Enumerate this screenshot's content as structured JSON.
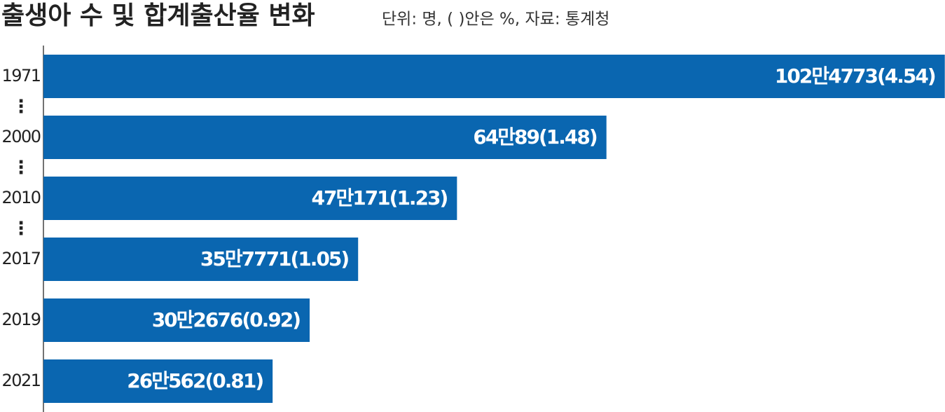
{
  "chart_data": {
    "type": "hbar",
    "title": "출생아 수 및 합계출산율 변화",
    "subtitle": "단위: 명, ( )안은 %, 자료: 통계청",
    "categories": [
      "1971",
      "2000",
      "2010",
      "2017",
      "2019",
      "2021"
    ],
    "values": [
      1024773,
      640089,
      470171,
      357771,
      302676,
      260562
    ],
    "value_labels": [
      "102만4773(4.54)",
      "64만89(1.48)",
      "47만171(1.23)",
      "35만7771(1.05)",
      "30만2676(0.92)",
      "26만562(0.81)"
    ],
    "color": "#0a66b0",
    "xlim": [
      0,
      1025000
    ]
  }
}
